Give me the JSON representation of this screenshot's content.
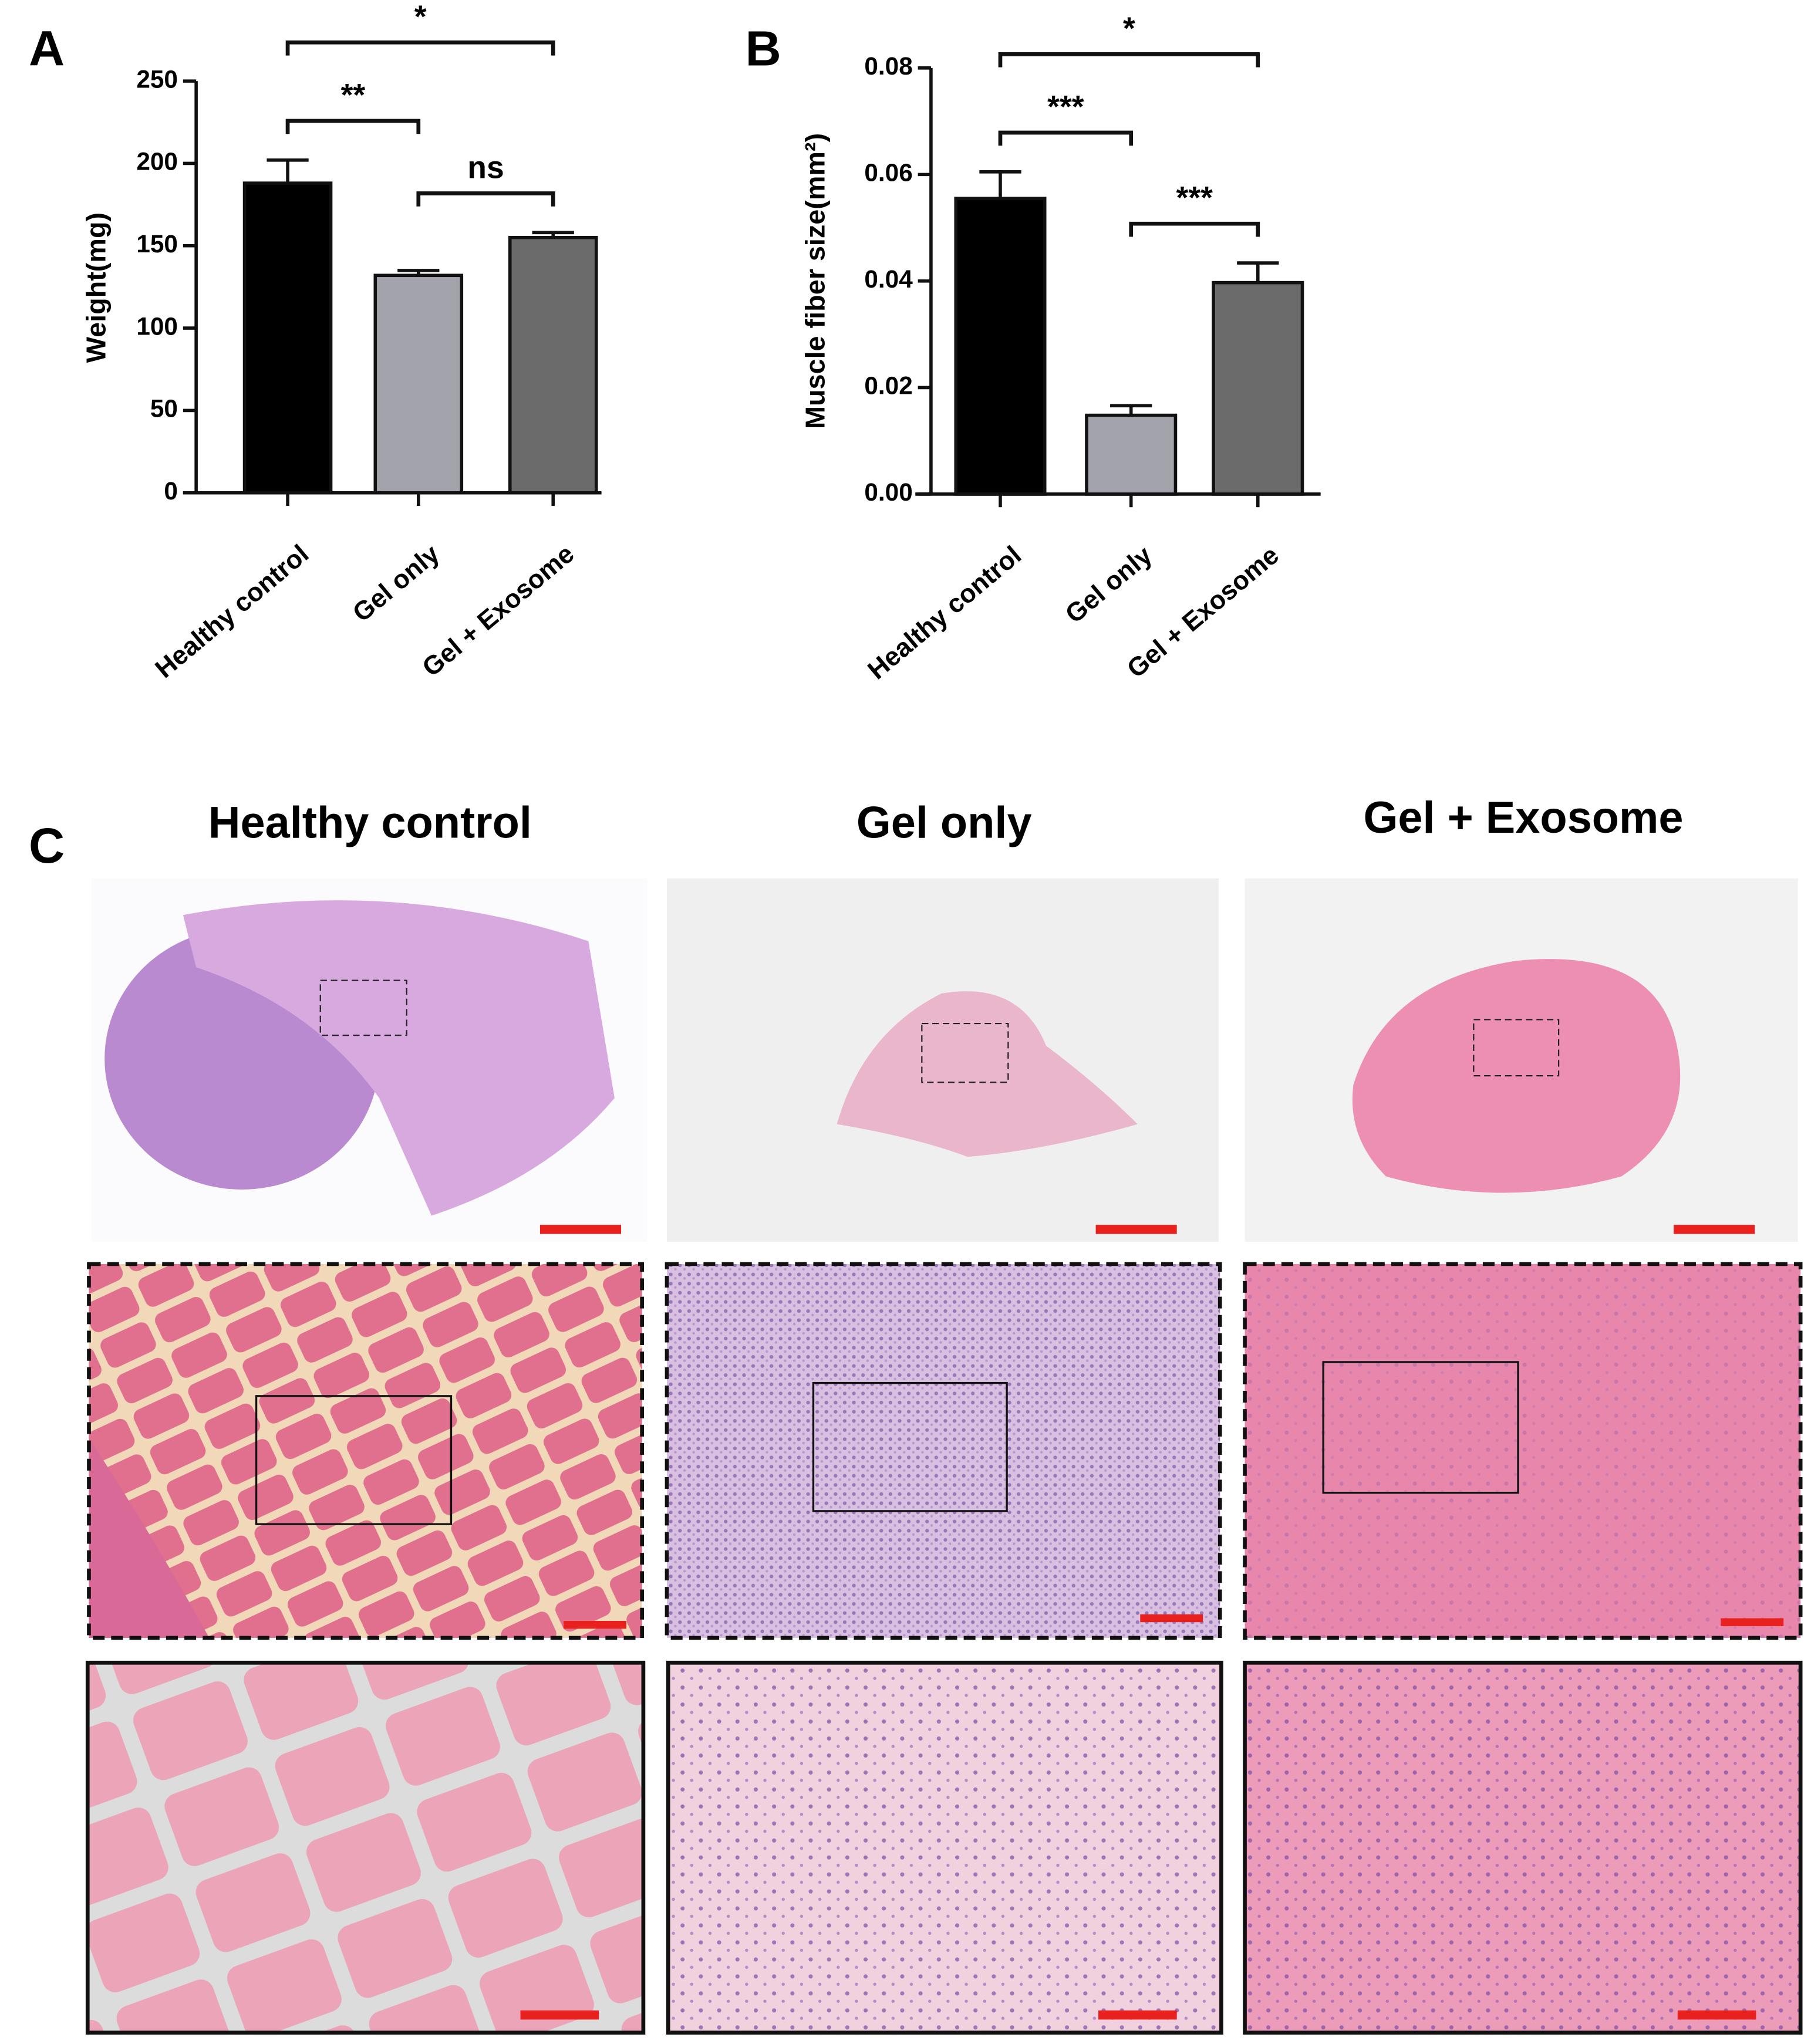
{
  "chart_data": [
    {
      "type": "bar",
      "panel_label": "A",
      "ylabel": "Weight(mg)",
      "categories": [
        "Healthy control",
        "Gel only",
        "Gel + Exosome"
      ],
      "values": [
        188,
        132,
        155
      ],
      "errors": [
        14,
        3,
        3
      ],
      "colors": [
        "#000000",
        "#a3a3ab",
        "#6b6b6b"
      ],
      "ylim": [
        0,
        250
      ],
      "yticks": [
        0,
        50,
        100,
        150,
        200,
        250
      ],
      "significance": [
        {
          "pair": [
            0,
            1
          ],
          "label": "**"
        },
        {
          "pair": [
            1,
            2
          ],
          "label": "ns"
        },
        {
          "pair": [
            0,
            2
          ],
          "label": "*"
        }
      ]
    },
    {
      "type": "bar",
      "panel_label": "B",
      "ylabel": "Muscle fiber size(mm²)",
      "categories": [
        "Healthy control",
        "Gel only",
        "Gel + Exosome"
      ],
      "values": [
        0.0555,
        0.0148,
        0.0397
      ],
      "errors": [
        0.005,
        0.0018,
        0.0037
      ],
      "colors": [
        "#000000",
        "#a3a3ab",
        "#6b6b6b"
      ],
      "ylim": [
        0,
        0.08
      ],
      "yticks": [
        {
          "value": 0,
          "label": "0.00"
        },
        {
          "value": 0.02,
          "label": "0.02"
        },
        {
          "value": 0.04,
          "label": "0.04"
        },
        {
          "value": 0.06,
          "label": "0.06"
        },
        {
          "value": 0.08,
          "label": "0.08"
        }
      ],
      "significance": [
        {
          "pair": [
            0,
            1
          ],
          "label": "***"
        },
        {
          "pair": [
            1,
            2
          ],
          "label": "***"
        },
        {
          "pair": [
            0,
            2
          ],
          "label": "*"
        }
      ]
    }
  ],
  "panel_c": {
    "label": "C",
    "columns": [
      "Healthy control",
      "Gel only",
      "Gel + Exosome"
    ]
  }
}
